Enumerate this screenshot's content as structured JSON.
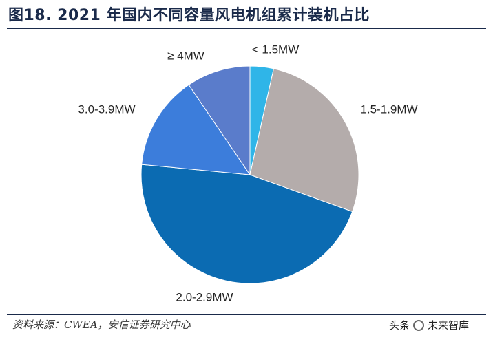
{
  "header": {
    "title": "图18. 2021 年国内不同容量风电机组累计装机占比"
  },
  "footer": {
    "source": "资料来源：CWEA，安信证券研究中心",
    "watermark_left": "头条",
    "watermark_right": "未来智库"
  },
  "chart_data": {
    "type": "pie",
    "start_angle_deg": 0,
    "direction": "clockwise",
    "slices": [
      {
        "label": "< 1.5MW",
        "value": 3.5,
        "color": "#2FB5E8"
      },
      {
        "label": "1.5-1.9MW",
        "value": 27.0,
        "color": "#B4ACAB"
      },
      {
        "label": "2.0-2.9MW",
        "value": 46.0,
        "color": "#0B6BB2"
      },
      {
        "label": "3.0-3.9MW",
        "value": 14.0,
        "color": "#3C7DDB"
      },
      {
        "label": "≥ 4MW",
        "value": 9.5,
        "color": "#5A7CCB"
      }
    ]
  }
}
